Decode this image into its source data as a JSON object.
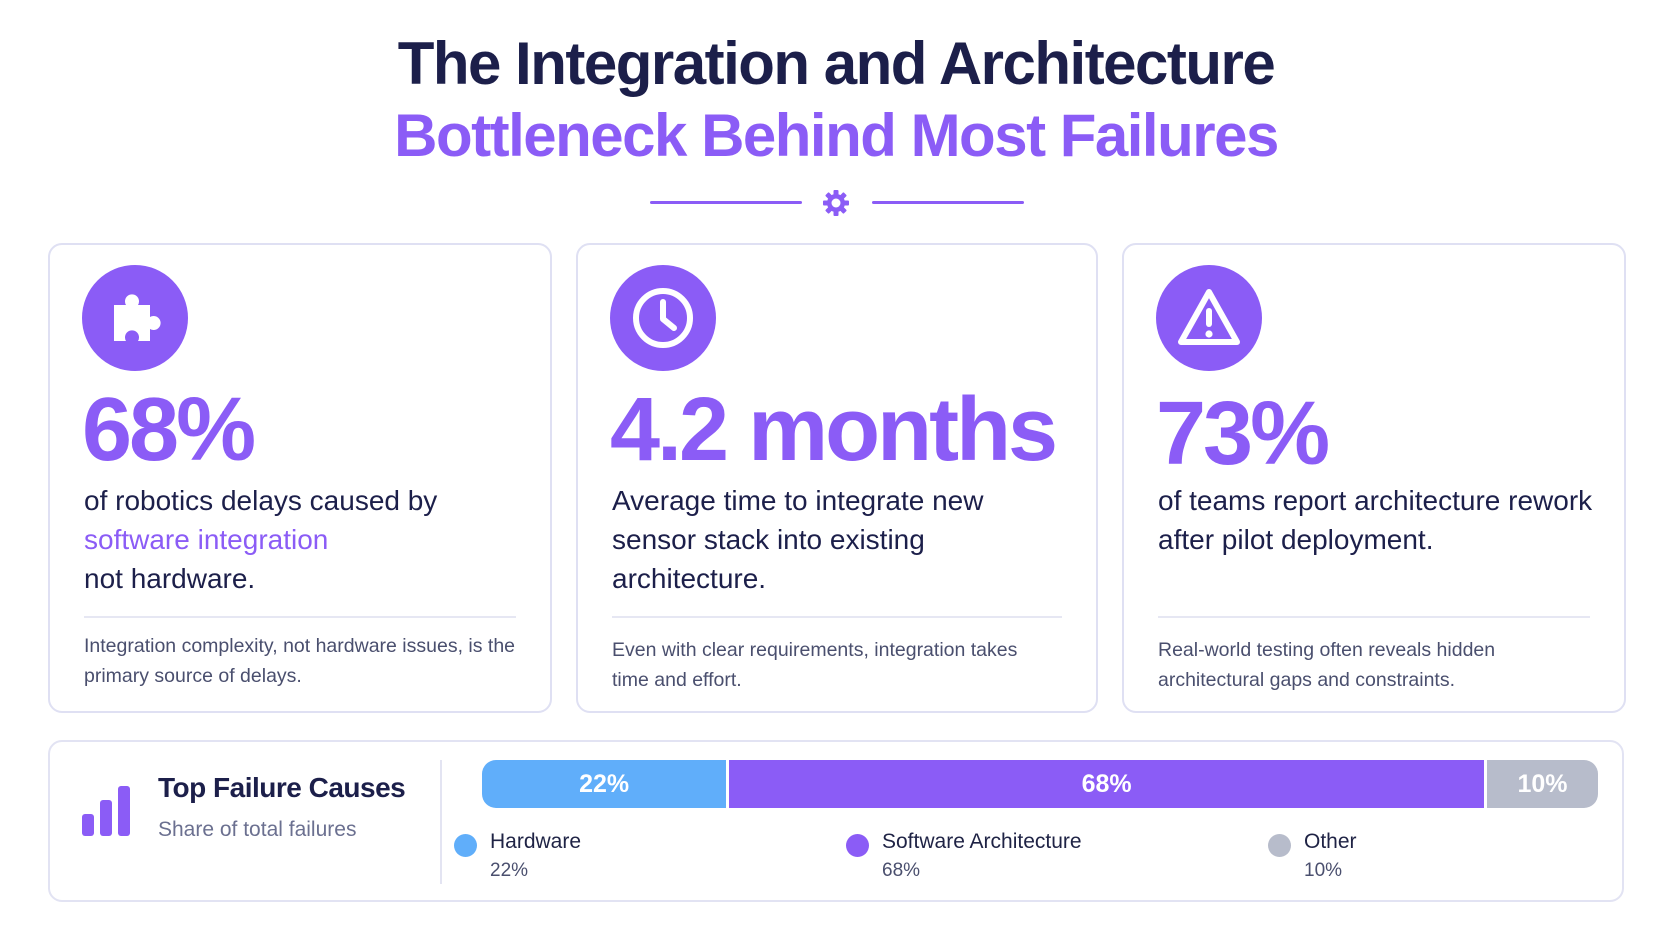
{
  "header": {
    "title_line1": "The Integration and Architecture",
    "title_line2": "Bottleneck Behind Most Failures"
  },
  "colors": {
    "accent": "#8b5cf6",
    "title_dark": "#1c1f4a",
    "hardware": "#60aefa",
    "software": "#8b5cf6",
    "other": "#b7bccb"
  },
  "cards": [
    {
      "icon": "puzzle-icon",
      "stat": "68%",
      "desc_before": "of robotics delays caused by ",
      "desc_highlight": "software integration",
      "desc_after": " not hardware.",
      "note": "Integration complexity, not hardware issues, is the primary source of delays."
    },
    {
      "icon": "clock-icon",
      "stat": "4.2 months",
      "desc": "Average time to integrate new sensor stack into existing architecture.",
      "note": "Even with clear requirements, integration takes time and effort."
    },
    {
      "icon": "warning-icon",
      "stat": "73%",
      "desc": "of teams report architecture rework after pilot deployment.",
      "note": "Real-world testing often reveals hidden architectural gaps and constraints."
    }
  ],
  "failure_panel": {
    "title": "Top Failure Causes",
    "subtitle": "Share of total failures",
    "icon": "bar-chart-icon"
  },
  "chart_data": {
    "type": "bar",
    "stacked": true,
    "orientation": "horizontal",
    "title": "Top Failure Causes",
    "subtitle": "Share of total failures",
    "categories": [
      "Hardware",
      "Software Architecture",
      "Other"
    ],
    "values": [
      22,
      68,
      10
    ],
    "labels": [
      "22%",
      "68%",
      "10%"
    ],
    "colors": [
      "#60aefa",
      "#8b5cf6",
      "#b7bccb"
    ],
    "xlim": [
      0,
      100
    ],
    "legend": "bottom"
  }
}
